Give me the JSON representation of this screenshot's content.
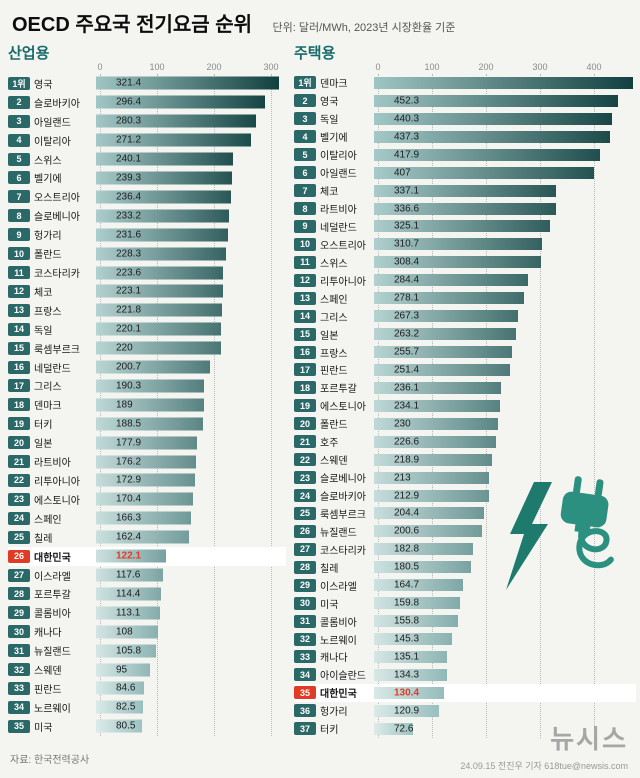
{
  "header": {
    "title": "OECD 주요국 전기요금 순위",
    "subtitle": "단위: 달러/MWh, 2023년 시장환율 기준"
  },
  "footer": {
    "source": "자료: 한국전력공사",
    "credit": "24.09.15 전진우 기자 618tue@newsis.com",
    "logo": "뉴시스"
  },
  "colors": {
    "accent_teal": "#166a69",
    "rank_badge_teal": "#2b6968",
    "highlight_red": "#e23b25",
    "bar_dark_start": "#9fc5c4",
    "bar_dark_end": "#11403f",
    "bar_light_start": "#dcebe9",
    "bar_light_end": "#9cc3c2",
    "icon_teal": "#2b9080",
    "grid_gray": "#b9b9b9"
  },
  "chart_data": [
    {
      "type": "bar",
      "title": "산업용",
      "unit": "달러/MWh",
      "axis_ticks": [
        0,
        100,
        200,
        300
      ],
      "xlim": [
        0,
        330
      ],
      "grid": "dotted-vertical",
      "highlight_country": "대한민국",
      "rows": [
        {
          "rank": "1위",
          "country": "영국",
          "value": 321.4,
          "label": "321.4"
        },
        {
          "rank": "2",
          "country": "슬로바키아",
          "value": 296.4,
          "label": "296.4"
        },
        {
          "rank": "3",
          "country": "아일랜드",
          "value": 280.3,
          "label": "280.3"
        },
        {
          "rank": "4",
          "country": "이탈리아",
          "value": 271.2,
          "label": "271.2"
        },
        {
          "rank": "5",
          "country": "스위스",
          "value": 240.1,
          "label": "240.1"
        },
        {
          "rank": "6",
          "country": "벨기에",
          "value": 239.3,
          "label": "239.3"
        },
        {
          "rank": "7",
          "country": "오스트리아",
          "value": 236.4,
          "label": "236.4"
        },
        {
          "rank": "8",
          "country": "슬로베니아",
          "value": 233.2,
          "label": "233.2"
        },
        {
          "rank": "9",
          "country": "헝가리",
          "value": 231.6,
          "label": "231.6"
        },
        {
          "rank": "10",
          "country": "폴란드",
          "value": 228.3,
          "label": "228.3"
        },
        {
          "rank": "11",
          "country": "코스타리카",
          "value": 223.6,
          "label": "223.6"
        },
        {
          "rank": "12",
          "country": "체코",
          "value": 223.1,
          "label": "223.1"
        },
        {
          "rank": "13",
          "country": "프랑스",
          "value": 221.8,
          "label": "221.8"
        },
        {
          "rank": "14",
          "country": "독일",
          "value": 220.1,
          "label": "220.1"
        },
        {
          "rank": "15",
          "country": "룩셈부르크",
          "value": 220,
          "label": "220"
        },
        {
          "rank": "16",
          "country": "네덜란드",
          "value": 200.7,
          "label": "200.7"
        },
        {
          "rank": "17",
          "country": "그리스",
          "value": 190.3,
          "label": "190.3"
        },
        {
          "rank": "18",
          "country": "덴마크",
          "value": 189,
          "label": "189"
        },
        {
          "rank": "19",
          "country": "터키",
          "value": 188.5,
          "label": "188.5"
        },
        {
          "rank": "20",
          "country": "일본",
          "value": 177.9,
          "label": "177.9"
        },
        {
          "rank": "21",
          "country": "라트비아",
          "value": 176.2,
          "label": "176.2"
        },
        {
          "rank": "22",
          "country": "리투아니아",
          "value": 172.9,
          "label": "172.9"
        },
        {
          "rank": "23",
          "country": "에스토니아",
          "value": 170.4,
          "label": "170.4"
        },
        {
          "rank": "24",
          "country": "스페인",
          "value": 166.3,
          "label": "166.3"
        },
        {
          "rank": "25",
          "country": "칠레",
          "value": 162.4,
          "label": "162.4"
        },
        {
          "rank": "26",
          "country": "대한민국",
          "value": 122.1,
          "label": "122.1",
          "highlight": true
        },
        {
          "rank": "27",
          "country": "이스라엘",
          "value": 117.6,
          "label": "117.6"
        },
        {
          "rank": "28",
          "country": "포르투갈",
          "value": 114.4,
          "label": "114.4"
        },
        {
          "rank": "29",
          "country": "콜롬비아",
          "value": 113.1,
          "label": "113.1"
        },
        {
          "rank": "30",
          "country": "캐나다",
          "value": 108,
          "label": "108"
        },
        {
          "rank": "31",
          "country": "뉴질랜드",
          "value": 105.8,
          "label": "105.8"
        },
        {
          "rank": "32",
          "country": "스웨덴",
          "value": 95,
          "label": "95"
        },
        {
          "rank": "33",
          "country": "핀란드",
          "value": 84.6,
          "label": "84.6"
        },
        {
          "rank": "34",
          "country": "노르웨이",
          "value": 82.5,
          "label": "82.5"
        },
        {
          "rank": "35",
          "country": "미국",
          "value": 80.5,
          "label": "80.5"
        }
      ]
    },
    {
      "type": "bar",
      "title": "주택용",
      "unit": "달러/MWh",
      "axis_ticks": [
        0,
        100,
        200,
        300,
        400
      ],
      "xlim": [
        0,
        480
      ],
      "grid": "dotted-vertical",
      "highlight_country": "대한민국",
      "note": "1위 덴마크 bar runs to chart edge; numeric label not shown, length ~480 estimated from gridlines",
      "rows": [
        {
          "rank": "1위",
          "country": "덴마크",
          "value": 480,
          "label": "",
          "value_estimated": true
        },
        {
          "rank": "2",
          "country": "영국",
          "value": 452.3,
          "label": "452.3"
        },
        {
          "rank": "3",
          "country": "독일",
          "value": 440.3,
          "label": "440.3"
        },
        {
          "rank": "4",
          "country": "벨기에",
          "value": 437.3,
          "label": "437.3"
        },
        {
          "rank": "5",
          "country": "이탈리아",
          "value": 417.9,
          "label": "417.9"
        },
        {
          "rank": "6",
          "country": "아일랜드",
          "value": 407,
          "label": "407"
        },
        {
          "rank": "7",
          "country": "체코",
          "value": 337.1,
          "label": "337.1"
        },
        {
          "rank": "8",
          "country": "라트비아",
          "value": 336.6,
          "label": "336.6"
        },
        {
          "rank": "9",
          "country": "네덜란드",
          "value": 325.1,
          "label": "325.1"
        },
        {
          "rank": "10",
          "country": "오스트리아",
          "value": 310.7,
          "label": "310.7"
        },
        {
          "rank": "11",
          "country": "스위스",
          "value": 308.4,
          "label": "308.4"
        },
        {
          "rank": "12",
          "country": "리투아니아",
          "value": 284.4,
          "label": "284.4"
        },
        {
          "rank": "13",
          "country": "스페인",
          "value": 278.1,
          "label": "278.1"
        },
        {
          "rank": "14",
          "country": "그리스",
          "value": 267.3,
          "label": "267.3"
        },
        {
          "rank": "15",
          "country": "일본",
          "value": 263.2,
          "label": "263.2"
        },
        {
          "rank": "16",
          "country": "프랑스",
          "value": 255.7,
          "label": "255.7"
        },
        {
          "rank": "17",
          "country": "핀란드",
          "value": 251.4,
          "label": "251.4"
        },
        {
          "rank": "18",
          "country": "포르투갈",
          "value": 236.1,
          "label": "236.1"
        },
        {
          "rank": "19",
          "country": "에스토니아",
          "value": 234.1,
          "label": "234.1"
        },
        {
          "rank": "20",
          "country": "폴란드",
          "value": 230,
          "label": "230"
        },
        {
          "rank": "21",
          "country": "호주",
          "value": 226.6,
          "label": "226.6"
        },
        {
          "rank": "22",
          "country": "스웨덴",
          "value": 218.9,
          "label": "218.9"
        },
        {
          "rank": "23",
          "country": "슬로베니아",
          "value": 213,
          "label": "213"
        },
        {
          "rank": "24",
          "country": "슬로바키아",
          "value": 212.9,
          "label": "212.9"
        },
        {
          "rank": "25",
          "country": "룩셈부르크",
          "value": 204.4,
          "label": "204.4"
        },
        {
          "rank": "26",
          "country": "뉴질랜드",
          "value": 200.6,
          "label": "200.6"
        },
        {
          "rank": "27",
          "country": "코스타리카",
          "value": 182.8,
          "label": "182.8"
        },
        {
          "rank": "28",
          "country": "칠레",
          "value": 180.5,
          "label": "180.5"
        },
        {
          "rank": "29",
          "country": "이스라엘",
          "value": 164.7,
          "label": "164.7"
        },
        {
          "rank": "30",
          "country": "미국",
          "value": 159.8,
          "label": "159.8"
        },
        {
          "rank": "31",
          "country": "콜롬비아",
          "value": 155.8,
          "label": "155.8"
        },
        {
          "rank": "32",
          "country": "노르웨이",
          "value": 145.3,
          "label": "145.3"
        },
        {
          "rank": "33",
          "country": "캐나다",
          "value": 135.1,
          "label": "135.1"
        },
        {
          "rank": "34",
          "country": "아이슬란드",
          "value": 134.3,
          "label": "134.3"
        },
        {
          "rank": "35",
          "country": "대한민국",
          "value": 130.4,
          "label": "130.4",
          "highlight": true
        },
        {
          "rank": "36",
          "country": "헝가리",
          "value": 120.9,
          "label": "120.9"
        },
        {
          "rank": "37",
          "country": "터키",
          "value": 72.6,
          "label": "72.6"
        }
      ]
    }
  ]
}
